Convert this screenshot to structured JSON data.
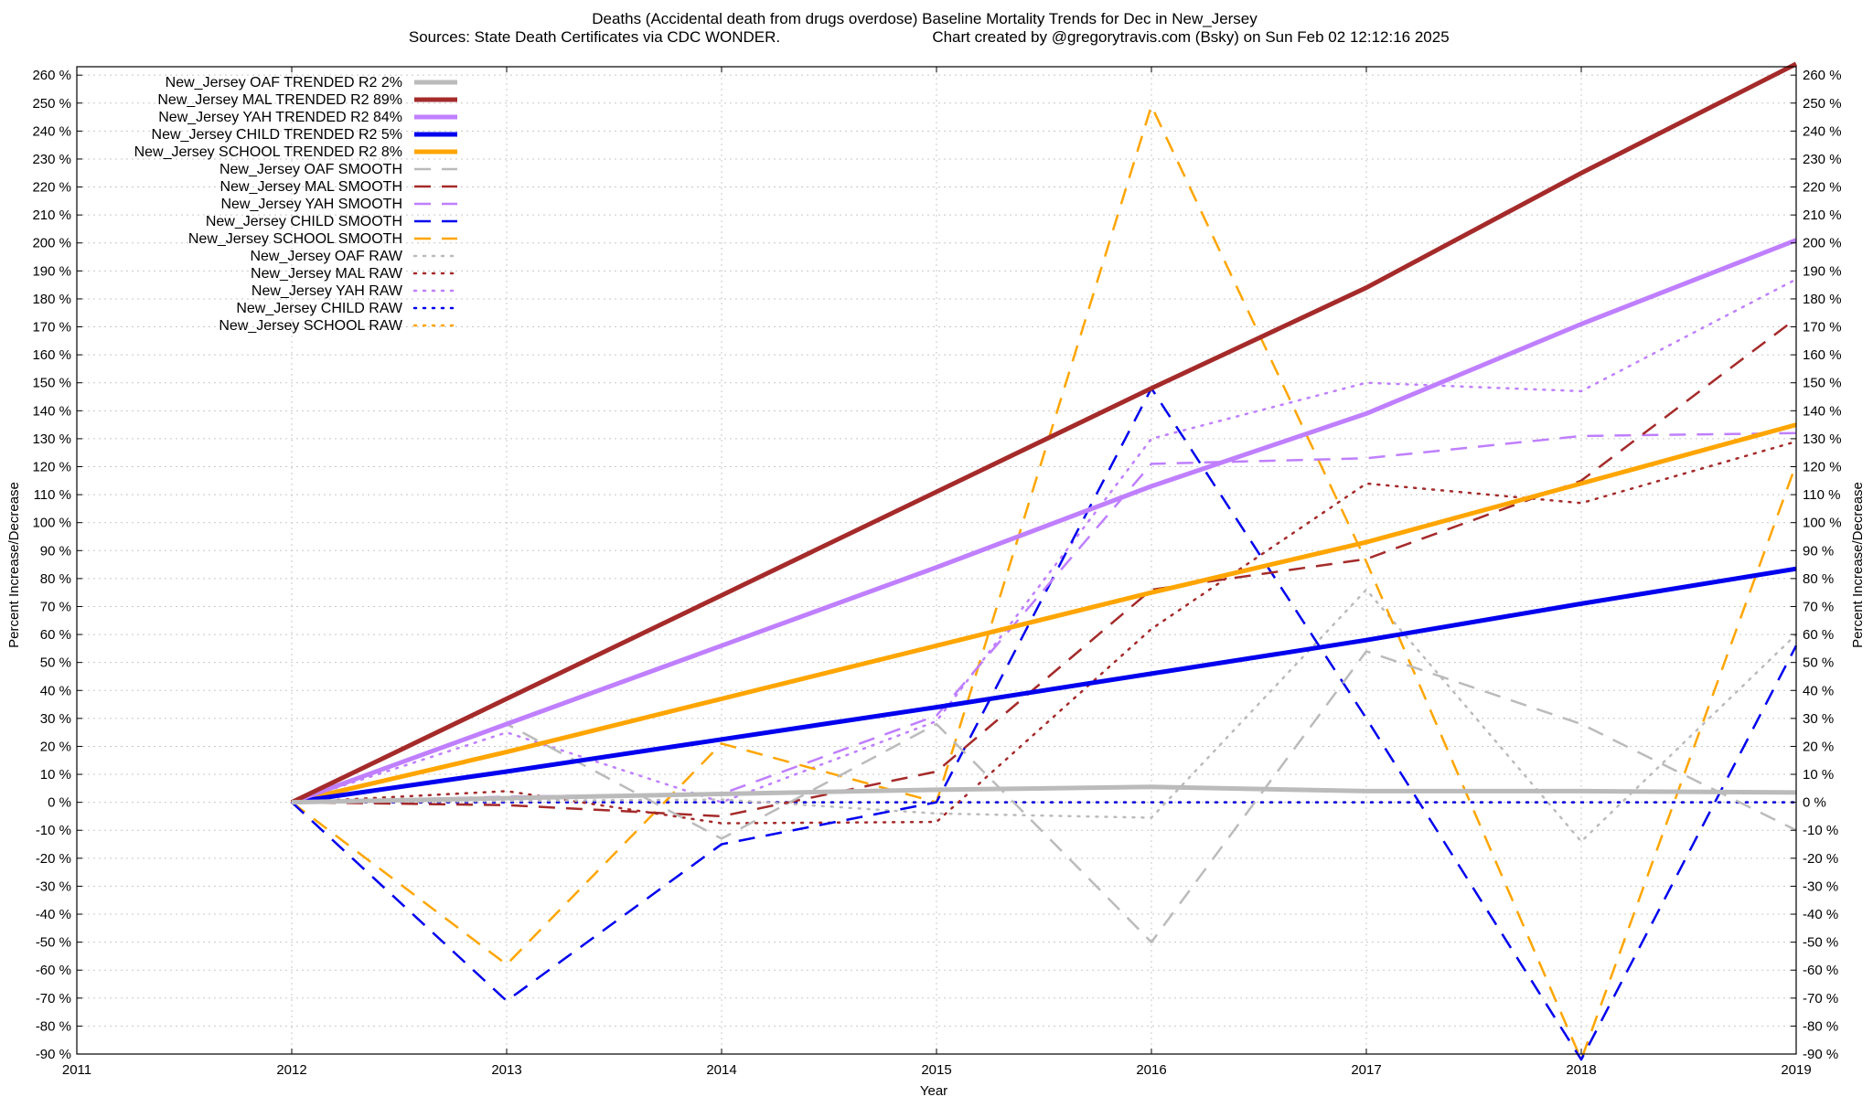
{
  "chart_data": {
    "type": "line",
    "title": "Deaths (Accidental death from drugs overdose)  Baseline Mortality Trends for Dec in New_Jersey",
    "subtitle_left": "Sources: State Death Certificates via CDC WONDER.",
    "subtitle_right": "Chart created by @gregorytravis.com (Bsky) on Sun Feb 02 12:12:16 2025",
    "xlabel": "Year",
    "ylabel_left": "Percent Increase/Decrease",
    "ylabel_right": "Percent Increase/Decrease",
    "xlim": [
      2011,
      2019
    ],
    "ylim": [
      -90,
      263
    ],
    "x_ticks": [
      2011,
      2012,
      2013,
      2014,
      2015,
      2016,
      2017,
      2018,
      2019
    ],
    "x_tick_labels": [
      "2011",
      "2012",
      "2013",
      "2014",
      "2015",
      "2016",
      "2017",
      "2018",
      "2019"
    ],
    "y_ticks": [
      -90,
      -80,
      -70,
      -60,
      -50,
      -40,
      -30,
      -20,
      -10,
      0,
      10,
      20,
      30,
      40,
      50,
      60,
      70,
      80,
      90,
      100,
      110,
      120,
      130,
      140,
      150,
      160,
      170,
      180,
      190,
      200,
      210,
      220,
      230,
      240,
      250,
      260
    ],
    "y_tick_labels": [
      "-90 %",
      "-80 %",
      "-70 %",
      "-60 %",
      "-50 %",
      "-40 %",
      "-30 %",
      "-20 %",
      "-10 %",
      "0 %",
      "10 %",
      "20 %",
      "30 %",
      "40 %",
      "50 %",
      "60 %",
      "70 %",
      "80 %",
      "90 %",
      "100 %",
      "110 %",
      "120 %",
      "130 %",
      "140 %",
      "150 %",
      "160 %",
      "170 %",
      "180 %",
      "190 %",
      "200 %",
      "210 %",
      "220 %",
      "230 %",
      "240 %",
      "250 %",
      "260 %"
    ],
    "grid": true,
    "legend_position": "top-left",
    "series": [
      {
        "name": "New_Jersey OAF TRENDED R2  2%",
        "color": "#bbbbbb",
        "style": "solid",
        "width": 5,
        "x": [
          2012,
          2013,
          2014,
          2015,
          2016,
          2017,
          2018,
          2019
        ],
        "y": [
          0,
          1.5,
          3,
          4.5,
          5.5,
          4,
          4,
          3.5
        ]
      },
      {
        "name": "New_Jersey MAL TRENDED R2  89%",
        "color": "#a52a2a",
        "style": "solid",
        "width": 5,
        "x": [
          2012,
          2013,
          2014,
          2015,
          2016,
          2017,
          2018,
          2019
        ],
        "y": [
          0,
          37,
          74,
          111,
          148,
          184,
          225,
          264
        ]
      },
      {
        "name": "New_Jersey YAH TRENDED R2  84%",
        "color": "#bf7fff",
        "style": "solid",
        "width": 5,
        "x": [
          2012,
          2013,
          2014,
          2015,
          2016,
          2017,
          2018,
          2019
        ],
        "y": [
          0,
          28,
          56,
          84,
          113,
          139,
          171,
          201
        ]
      },
      {
        "name": "New_Jersey CHILD TRENDED R2  5%",
        "color": "#0000ee",
        "style": "solid",
        "width": 5,
        "x": [
          2012,
          2013,
          2014,
          2015,
          2016,
          2017,
          2018,
          2019
        ],
        "y": [
          0,
          11,
          22.5,
          34,
          46,
          58,
          71,
          83.5
        ]
      },
      {
        "name": "New_Jersey SCHOOL TRENDED R2  8%",
        "color": "#ffa500",
        "style": "solid",
        "width": 5,
        "x": [
          2012,
          2013,
          2014,
          2015,
          2016,
          2017,
          2018,
          2019
        ],
        "y": [
          0,
          18,
          37,
          56,
          75,
          93,
          114,
          135
        ]
      },
      {
        "name": "New_Jersey OAF SMOOTH",
        "color": "#bbbbbb",
        "style": "dashed",
        "width": 2.5,
        "x": [
          2012,
          2013,
          2014,
          2015,
          2016,
          2017,
          2018,
          2019
        ],
        "y": [
          0,
          28,
          -13,
          28,
          -50,
          54,
          28,
          -10
        ]
      },
      {
        "name": "New_Jersey MAL SMOOTH",
        "color": "#a52a2a",
        "style": "dashed",
        "width": 2.5,
        "x": [
          2012,
          2013,
          2014,
          2015,
          2016,
          2017,
          2018,
          2019
        ],
        "y": [
          0,
          -1,
          -5,
          11,
          76,
          87,
          115,
          173
        ]
      },
      {
        "name": "New_Jersey YAH SMOOTH",
        "color": "#bf7fff",
        "style": "dashed",
        "width": 2.5,
        "x": [
          2012,
          2013,
          2014,
          2015,
          2016,
          2017,
          2018,
          2019
        ],
        "y": [
          0,
          2,
          3,
          31,
          121,
          123,
          131,
          132
        ]
      },
      {
        "name": "New_Jersey CHILD SMOOTH",
        "color": "#0000ee",
        "style": "dashed",
        "width": 2.5,
        "x": [
          2012,
          2013,
          2014,
          2015,
          2016,
          2017,
          2018,
          2019
        ],
        "y": [
          0,
          -71,
          -15,
          0,
          148,
          30,
          -92,
          56
        ]
      },
      {
        "name": "New_Jersey SCHOOL SMOOTH",
        "color": "#ffa500",
        "style": "dashed",
        "width": 2.5,
        "x": [
          2012,
          2013,
          2014,
          2015,
          2016,
          2017,
          2018,
          2019
        ],
        "y": [
          0,
          -58,
          21,
          0,
          249,
          86,
          -92,
          121
        ]
      },
      {
        "name": "New_Jersey OAF RAW",
        "color": "#bbbbbb",
        "style": "dotted",
        "width": 2.5,
        "x": [
          2012,
          2013,
          2014,
          2015,
          2016,
          2017,
          2018,
          2019
        ],
        "y": [
          0,
          0.5,
          1,
          -4,
          -5.5,
          76,
          -14,
          60
        ]
      },
      {
        "name": "New_Jersey MAL RAW",
        "color": "#a52a2a",
        "style": "dotted",
        "width": 2.5,
        "x": [
          2012,
          2013,
          2014,
          2015,
          2016,
          2017,
          2018,
          2019
        ],
        "y": [
          0,
          4,
          -7.5,
          -7,
          62,
          114,
          107,
          129
        ]
      },
      {
        "name": "New_Jersey YAH RAW",
        "color": "#bf7fff",
        "style": "dotted",
        "width": 2.5,
        "x": [
          2012,
          2013,
          2014,
          2015,
          2016,
          2017,
          2018,
          2019
        ],
        "y": [
          0,
          25,
          0,
          29,
          130,
          150,
          147,
          187
        ]
      },
      {
        "name": "New_Jersey CHILD RAW",
        "color": "#0000ee",
        "style": "dotted",
        "width": 2.5,
        "x": [
          2012,
          2013,
          2014,
          2015,
          2016,
          2017,
          2018,
          2019
        ],
        "y": [
          0,
          0,
          0,
          0,
          0,
          0,
          0,
          0
        ]
      },
      {
        "name": "New_Jersey SCHOOL RAW",
        "color": "#ffa500",
        "style": "dotted",
        "width": 2.5,
        "x": [
          2012,
          2013,
          2014,
          2015,
          2016,
          2017,
          2018,
          2019
        ],
        "y": [
          0,
          0,
          0,
          0,
          0,
          0,
          0,
          0
        ]
      }
    ]
  }
}
